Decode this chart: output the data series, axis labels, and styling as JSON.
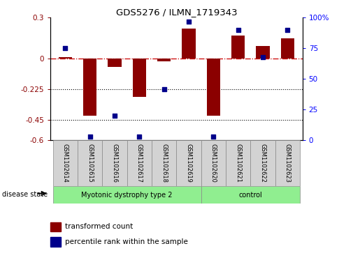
{
  "title": "GDS5276 / ILMN_1719343",
  "samples": [
    "GSM1102614",
    "GSM1102615",
    "GSM1102616",
    "GSM1102617",
    "GSM1102618",
    "GSM1102619",
    "GSM1102620",
    "GSM1102621",
    "GSM1102622",
    "GSM1102623"
  ],
  "red_bars": [
    0.01,
    -0.42,
    -0.06,
    -0.28,
    -0.02,
    0.22,
    -0.42,
    0.17,
    0.09,
    0.15
  ],
  "blue_dots": [
    75,
    3,
    20,
    3,
    42,
    97,
    3,
    90,
    68,
    90
  ],
  "ylim_left": [
    -0.6,
    0.3
  ],
  "ylim_right": [
    0,
    100
  ],
  "yticks_left": [
    0.3,
    0.0,
    -0.225,
    -0.45,
    -0.6
  ],
  "yticks_right": [
    100,
    75,
    50,
    25,
    0
  ],
  "hline_y": 0,
  "dotted_lines": [
    -0.225,
    -0.45
  ],
  "bar_color": "#8b0000",
  "dot_color": "#00008b",
  "legend_labels": [
    "transformed count",
    "percentile rank within the sample"
  ],
  "disease_label": "disease state",
  "group1_label": "Myotonic dystrophy type 2",
  "group2_label": "control",
  "group_color": "#90ee90",
  "label_box_color": "#d3d3d3"
}
